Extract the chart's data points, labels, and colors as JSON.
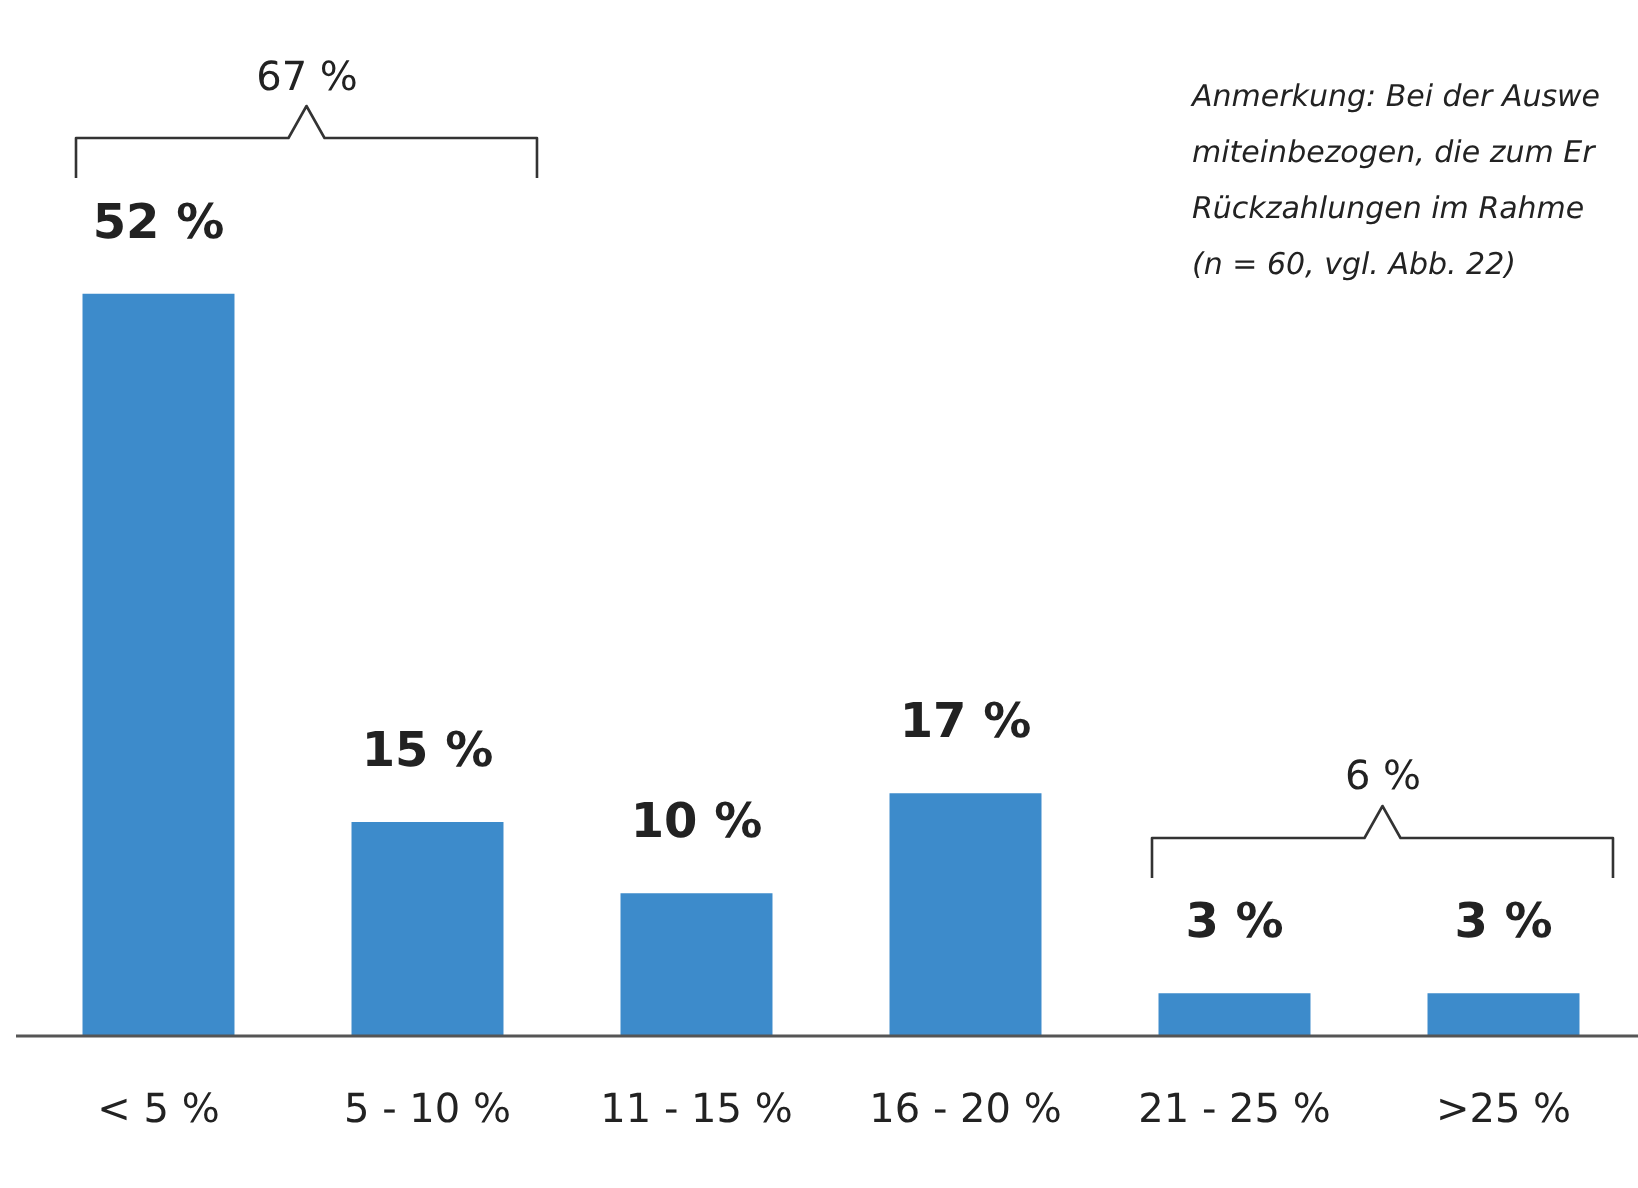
{
  "chart_data": {
    "type": "bar",
    "categories": [
      "< 5 %",
      "5 - 10 %",
      "11 - 15 %",
      "16 - 20 %",
      "21 - 25 %",
      ">25 %"
    ],
    "values": [
      52,
      15,
      10,
      17,
      3,
      3
    ],
    "value_labels": [
      "52 %",
      "15 %",
      "10 %",
      "17 %",
      "3 %",
      "3 %"
    ],
    "color": "#3d8bcb",
    "grid": false,
    "legend": false,
    "annotations": [
      "67 %",
      "6 %",
      "Anmerkung: Bei der Auswe",
      "miteinbezogen, die zum Er",
      "Rückzahlungen im Rahme",
      "(n = 60, vgl. Abb. 22)"
    ]
  }
}
